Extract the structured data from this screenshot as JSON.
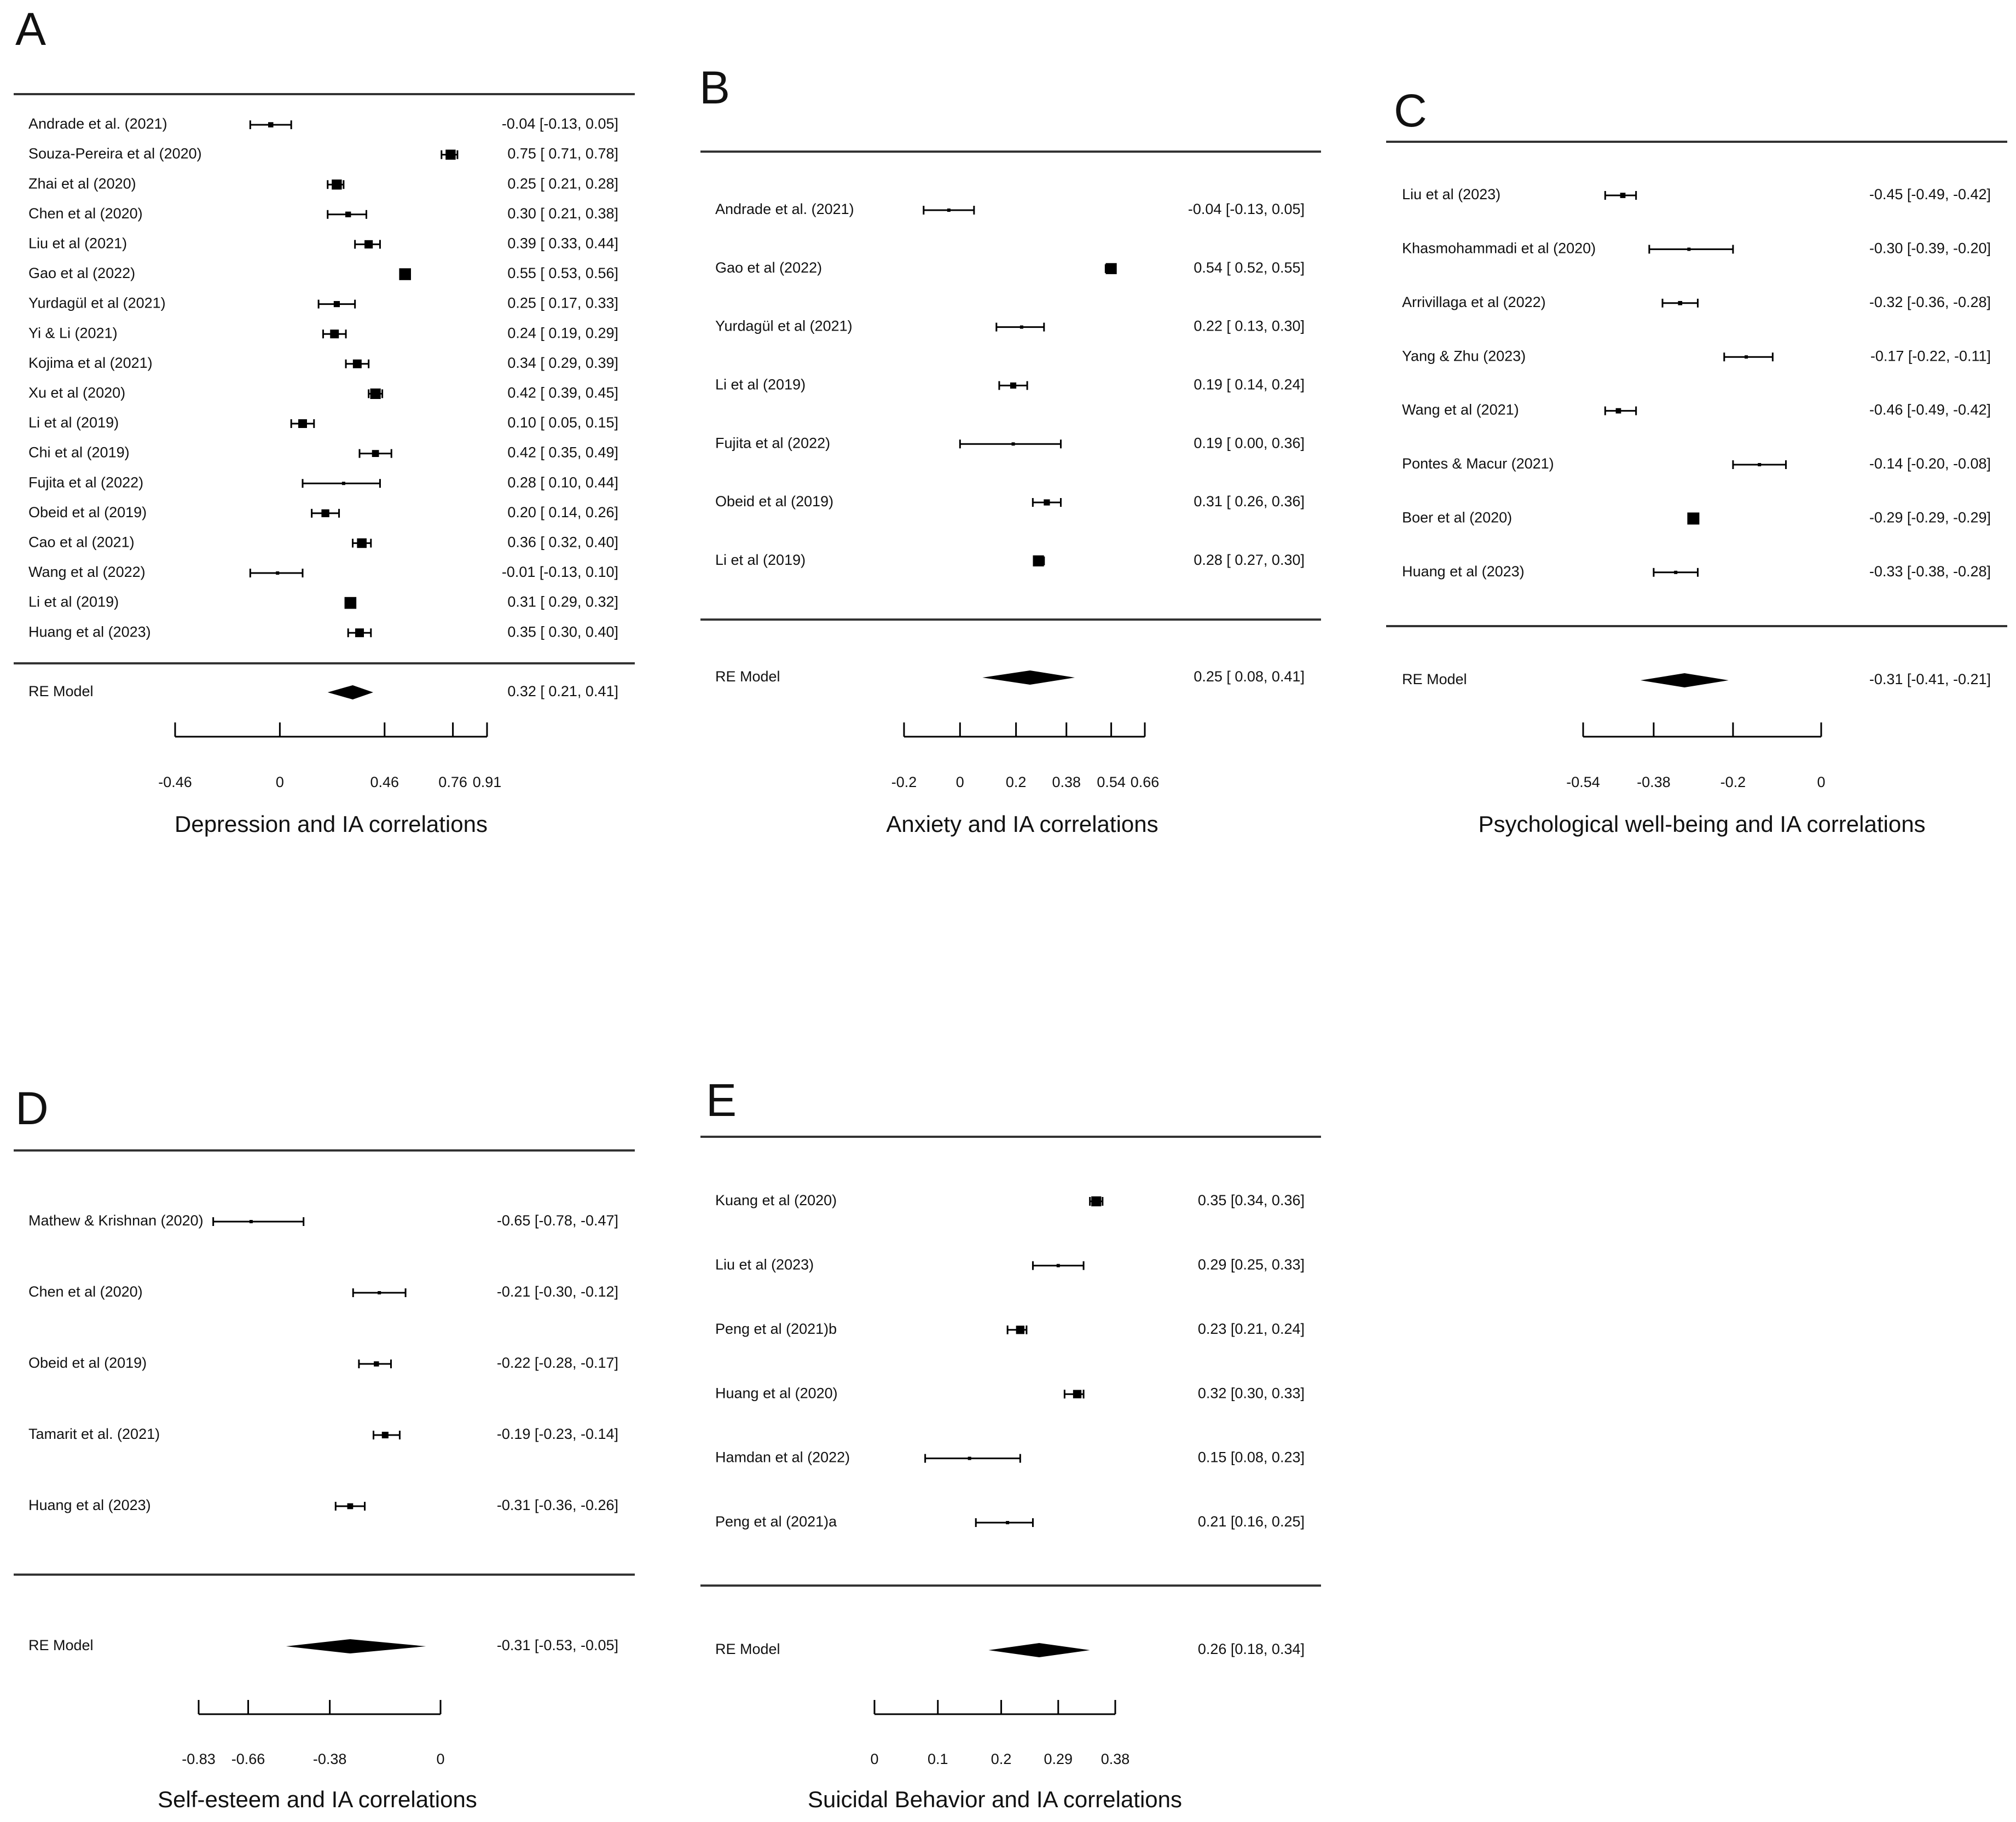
{
  "chart_data": [
    {
      "type": "forest",
      "panel_label": "A",
      "xlabel": "Depression and IA correlations",
      "xticks": [
        -0.46,
        0,
        0.46,
        0.76,
        0.91
      ],
      "xtick_labels": [
        "-0.46",
        "0",
        "0.46",
        "0.76",
        "0.91"
      ],
      "studies": [
        {
          "label": "Andrade et al. (2021)",
          "est": -0.04,
          "lo": -0.13,
          "hi": 0.05,
          "ci_text": "-0.04 [-0.13, 0.05]"
        },
        {
          "label": "Souza-Pereira et al (2020)",
          "est": 0.75,
          "lo": 0.71,
          "hi": 0.78,
          "ci_text": "0.75 [ 0.71, 0.78]"
        },
        {
          "label": "Zhai et al (2020)",
          "est": 0.25,
          "lo": 0.21,
          "hi": 0.28,
          "ci_text": "0.25 [ 0.21, 0.28]"
        },
        {
          "label": "Chen et al (2020)",
          "est": 0.3,
          "lo": 0.21,
          "hi": 0.38,
          "ci_text": "0.30 [ 0.21, 0.38]"
        },
        {
          "label": "Liu et al (2021)",
          "est": 0.39,
          "lo": 0.33,
          "hi": 0.44,
          "ci_text": "0.39 [ 0.33, 0.44]"
        },
        {
          "label": "Gao et al (2022)",
          "est": 0.55,
          "lo": 0.53,
          "hi": 0.56,
          "ci_text": "0.55 [ 0.53, 0.56]"
        },
        {
          "label": "Yurdagül et al (2021)",
          "est": 0.25,
          "lo": 0.17,
          "hi": 0.33,
          "ci_text": "0.25 [ 0.17, 0.33]"
        },
        {
          "label": "Yi  & Li (2021)",
          "est": 0.24,
          "lo": 0.19,
          "hi": 0.29,
          "ci_text": "0.24 [ 0.19, 0.29]"
        },
        {
          "label": "Kojima et al (2021)",
          "est": 0.34,
          "lo": 0.29,
          "hi": 0.39,
          "ci_text": "0.34 [ 0.29, 0.39]"
        },
        {
          "label": "Xu et al (2020)",
          "est": 0.42,
          "lo": 0.39,
          "hi": 0.45,
          "ci_text": "0.42 [ 0.39, 0.45]"
        },
        {
          "label": "Li et al (2019)",
          "est": 0.1,
          "lo": 0.05,
          "hi": 0.15,
          "ci_text": "0.10 [ 0.05, 0.15]"
        },
        {
          "label": "Chi et al (2019)",
          "est": 0.42,
          "lo": 0.35,
          "hi": 0.49,
          "ci_text": "0.42 [ 0.35, 0.49]"
        },
        {
          "label": "Fujita et al (2022)",
          "est": 0.28,
          "lo": 0.1,
          "hi": 0.44,
          "ci_text": "0.28 [ 0.10, 0.44]"
        },
        {
          "label": "Obeid et al (2019)",
          "est": 0.2,
          "lo": 0.14,
          "hi": 0.26,
          "ci_text": "0.20 [ 0.14, 0.26]"
        },
        {
          "label": "Cao et al (2021)",
          "est": 0.36,
          "lo": 0.32,
          "hi": 0.4,
          "ci_text": "0.36 [ 0.32, 0.40]"
        },
        {
          "label": "Wang et al (2022)",
          "est": -0.01,
          "lo": -0.13,
          "hi": 0.1,
          "ci_text": "-0.01 [-0.13, 0.10]"
        },
        {
          "label": "Li et al (2019)",
          "est": 0.31,
          "lo": 0.29,
          "hi": 0.32,
          "ci_text": "0.31 [ 0.29, 0.32]"
        },
        {
          "label": "Huang et al (2023)",
          "est": 0.35,
          "lo": 0.3,
          "hi": 0.4,
          "ci_text": "0.35 [ 0.30, 0.40]"
        }
      ],
      "summary": {
        "label": "RE Model",
        "est": 0.32,
        "lo": 0.21,
        "hi": 0.41,
        "ci_text": "0.32 [ 0.21, 0.41]"
      }
    },
    {
      "type": "forest",
      "panel_label": "B",
      "xlabel": "Anxiety and IA correlations",
      "xticks": [
        -0.2,
        0,
        0.2,
        0.38,
        0.54,
        0.66
      ],
      "xtick_labels": [
        "-0.2",
        "0",
        "0.2",
        "0.38",
        "0.54",
        "0.66"
      ],
      "studies": [
        {
          "label": "Andrade et al. (2021)",
          "est": -0.04,
          "lo": -0.13,
          "hi": 0.05,
          "ci_text": "-0.04 [-0.13, 0.05]"
        },
        {
          "label": "Gao et al (2022)",
          "est": 0.54,
          "lo": 0.52,
          "hi": 0.55,
          "ci_text": "0.54 [ 0.52, 0.55]"
        },
        {
          "label": "Yurdagül et al (2021)",
          "est": 0.22,
          "lo": 0.13,
          "hi": 0.3,
          "ci_text": "0.22 [ 0.13, 0.30]"
        },
        {
          "label": "Li et al (2019)",
          "est": 0.19,
          "lo": 0.14,
          "hi": 0.24,
          "ci_text": "0.19 [ 0.14, 0.24]"
        },
        {
          "label": "Fujita et al (2022)",
          "est": 0.19,
          "lo": 0.0,
          "hi": 0.36,
          "ci_text": "0.19 [ 0.00, 0.36]"
        },
        {
          "label": "Obeid et al (2019)",
          "est": 0.31,
          "lo": 0.26,
          "hi": 0.36,
          "ci_text": "0.31 [ 0.26, 0.36]"
        },
        {
          "label": "Li et al (2019)",
          "est": 0.28,
          "lo": 0.27,
          "hi": 0.3,
          "ci_text": "0.28 [ 0.27, 0.30]"
        }
      ],
      "summary": {
        "label": "RE Model",
        "est": 0.25,
        "lo": 0.08,
        "hi": 0.41,
        "ci_text": "0.25 [ 0.08, 0.41]"
      }
    },
    {
      "type": "forest",
      "panel_label": "C",
      "xlabel": "Psychological well-being and IA correlations",
      "xticks": [
        -0.54,
        -0.38,
        -0.2,
        0
      ],
      "xtick_labels": [
        "-0.54",
        "-0.38",
        "-0.2",
        "0"
      ],
      "studies": [
        {
          "label": "Liu et al (2023)",
          "est": -0.45,
          "lo": -0.49,
          "hi": -0.42,
          "ci_text": "-0.45 [-0.49, -0.42]"
        },
        {
          "label": "Khasmohammadi et al (2020)",
          "est": -0.3,
          "lo": -0.39,
          "hi": -0.2,
          "ci_text": "-0.30 [-0.39, -0.20]"
        },
        {
          "label": "Arrivillaga et al (2022)",
          "est": -0.32,
          "lo": -0.36,
          "hi": -0.28,
          "ci_text": "-0.32 [-0.36, -0.28]"
        },
        {
          "label": "Yang & Zhu (2023)",
          "est": -0.17,
          "lo": -0.22,
          "hi": -0.11,
          "ci_text": "-0.17 [-0.22, -0.11]"
        },
        {
          "label": "Wang et al (2021)",
          "est": -0.46,
          "lo": -0.49,
          "hi": -0.42,
          "ci_text": "-0.46 [-0.49, -0.42]"
        },
        {
          "label": "Pontes & Macur (2021)",
          "est": -0.14,
          "lo": -0.2,
          "hi": -0.08,
          "ci_text": "-0.14 [-0.20, -0.08]"
        },
        {
          "label": "Boer et al (2020)",
          "est": -0.29,
          "lo": -0.29,
          "hi": -0.29,
          "ci_text": "-0.29 [-0.29, -0.29]"
        },
        {
          "label": "Huang et al (2023)",
          "est": -0.33,
          "lo": -0.38,
          "hi": -0.28,
          "ci_text": "-0.33 [-0.38, -0.28]"
        }
      ],
      "summary": {
        "label": "RE Model",
        "est": -0.31,
        "lo": -0.41,
        "hi": -0.21,
        "ci_text": "-0.31 [-0.41, -0.21]"
      }
    },
    {
      "type": "forest",
      "panel_label": "D",
      "xlabel": "Self-esteem and IA correlations",
      "xticks": [
        -0.83,
        -0.66,
        -0.38,
        0
      ],
      "xtick_labels": [
        "-0.83",
        "-0.66",
        "-0.38",
        "0"
      ],
      "studies": [
        {
          "label": "Mathew & Krishnan (2020)",
          "est": -0.65,
          "lo": -0.78,
          "hi": -0.47,
          "ci_text": "-0.65 [-0.78, -0.47]"
        },
        {
          "label": "Chen et al (2020)",
          "est": -0.21,
          "lo": -0.3,
          "hi": -0.12,
          "ci_text": "-0.21 [-0.30, -0.12]"
        },
        {
          "label": "Obeid et al (2019)",
          "est": -0.22,
          "lo": -0.28,
          "hi": -0.17,
          "ci_text": "-0.22 [-0.28, -0.17]"
        },
        {
          "label": "Tamarit et al. (2021)",
          "est": -0.19,
          "lo": -0.23,
          "hi": -0.14,
          "ci_text": "-0.19 [-0.23, -0.14]"
        },
        {
          "label": "Huang et al (2023)",
          "est": -0.31,
          "lo": -0.36,
          "hi": -0.26,
          "ci_text": "-0.31 [-0.36, -0.26]"
        }
      ],
      "summary": {
        "label": "RE Model",
        "est": -0.31,
        "lo": -0.53,
        "hi": -0.05,
        "ci_text": "-0.31 [-0.53, -0.05]"
      }
    },
    {
      "type": "forest",
      "panel_label": "E",
      "xlabel": "Suicidal Behavior and IA correlations",
      "xticks": [
        0,
        0.1,
        0.2,
        0.29,
        0.38
      ],
      "xtick_labels": [
        "0",
        "0.1",
        "0.2",
        "0.29",
        "0.38"
      ],
      "studies": [
        {
          "label": "Kuang et al (2020)",
          "est": 0.35,
          "lo": 0.34,
          "hi": 0.36,
          "ci_text": "0.35 [0.34, 0.36]"
        },
        {
          "label": "Liu et al (2023)",
          "est": 0.29,
          "lo": 0.25,
          "hi": 0.33,
          "ci_text": "0.29 [0.25, 0.33]"
        },
        {
          "label": "Peng et al (2021)b",
          "est": 0.23,
          "lo": 0.21,
          "hi": 0.24,
          "ci_text": "0.23 [0.21, 0.24]"
        },
        {
          "label": "Huang et al (2020)",
          "est": 0.32,
          "lo": 0.3,
          "hi": 0.33,
          "ci_text": "0.32 [0.30, 0.33]"
        },
        {
          "label": "Hamdan et al (2022)",
          "est": 0.15,
          "lo": 0.08,
          "hi": 0.23,
          "ci_text": "0.15 [0.08, 0.23]"
        },
        {
          "label": "Peng et al (2021)a",
          "est": 0.21,
          "lo": 0.16,
          "hi": 0.25,
          "ci_text": "0.21 [0.16, 0.25]"
        }
      ],
      "summary": {
        "label": "RE Model",
        "est": 0.26,
        "lo": 0.18,
        "hi": 0.34,
        "ci_text": "0.26 [0.18, 0.34]"
      }
    }
  ]
}
